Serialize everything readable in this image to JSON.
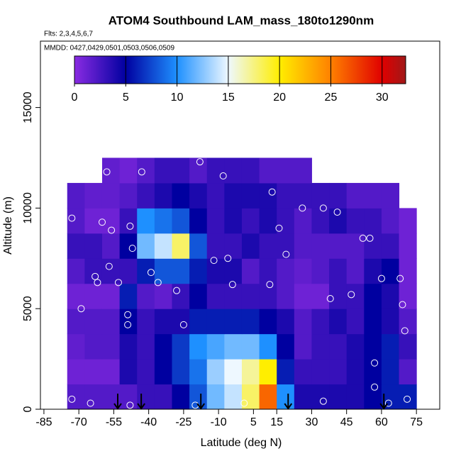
{
  "chart_data": {
    "type": "heatmap",
    "title": "ATOM4 Southbound LAM_mass_180to1290nm",
    "flights": "Flts: 2,3,4,5,6,7",
    "dates": "MMDD: 0427,0429,0501,0503,0506,0509",
    "x_label": "Latitude (deg N)",
    "y_label": "Altitude (m)",
    "xlim": [
      -86.5,
      85
    ],
    "ylim": [
      0,
      18300
    ],
    "xticks": [
      -85,
      -70,
      -55,
      -40,
      -25,
      -10,
      5,
      15,
      30,
      45,
      60,
      75
    ],
    "yticks": [
      0,
      5000,
      10000,
      15000
    ],
    "lat_edges": [
      -75,
      -67.5,
      -60,
      -52.5,
      -45,
      -37.5,
      -30,
      -22.5,
      -15,
      -7.5,
      0,
      7.5,
      15,
      22.5,
      30,
      37.5,
      45,
      52.5,
      60,
      67.5,
      75
    ],
    "alt_edges": [
      0,
      1250,
      2500,
      3750,
      5000,
      6250,
      7500,
      8750,
      10000,
      11250,
      12500
    ],
    "values": [
      [
        2,
        2,
        2,
        2,
        3,
        3,
        5,
        8,
        12,
        14,
        18,
        26,
        10,
        4,
        4,
        4,
        4,
        5,
        6,
        6
      ],
      [
        1,
        1,
        1,
        4,
        3,
        5,
        7,
        9,
        13,
        15,
        17,
        20,
        6,
        3,
        3,
        3,
        4,
        5,
        6,
        2
      ],
      [
        1.5,
        2,
        2,
        4,
        3,
        5,
        7,
        10,
        11,
        12,
        12,
        10,
        5,
        2,
        3,
        3,
        4,
        5,
        6,
        3
      ],
      [
        2,
        2,
        2,
        5,
        3,
        4,
        4,
        6,
        6,
        6,
        6,
        5,
        4,
        2,
        3,
        4,
        3,
        5,
        4,
        2
      ],
      [
        1,
        1,
        1,
        6,
        2,
        1.5,
        3,
        5,
        3,
        3,
        3,
        3,
        2,
        1,
        1,
        3,
        3,
        5,
        4,
        1
      ],
      [
        2,
        3,
        3,
        3,
        6,
        8,
        8,
        6,
        4,
        4,
        2,
        3,
        2,
        1.5,
        2,
        3,
        2,
        4,
        5,
        1
      ],
      [
        3,
        3,
        2,
        5,
        12,
        14,
        18,
        8,
        3,
        3,
        4,
        3,
        3,
        2,
        2,
        2,
        2,
        3,
        3,
        1
      ],
      [
        2,
        1,
        1,
        3,
        10,
        9,
        8,
        5,
        3,
        4,
        3,
        4,
        3,
        2,
        3,
        4,
        3,
        3,
        2,
        1
      ],
      [
        2,
        1.5,
        1.5,
        2,
        3,
        4,
        5,
        4,
        3,
        4,
        4,
        4,
        3,
        3,
        3,
        3,
        2,
        2,
        2,
        null
      ],
      [
        null,
        null,
        1.5,
        1,
        2,
        3,
        3,
        2,
        3,
        3,
        3,
        2,
        2,
        2,
        null,
        null,
        null,
        null,
        null,
        null
      ]
    ],
    "colorscale": [
      {
        "value": 0,
        "color": "#8a2be2"
      },
      {
        "value": 5,
        "color": "#0000a0"
      },
      {
        "value": 10,
        "color": "#1e90ff"
      },
      {
        "value": 15,
        "color": "#eef8ff"
      },
      {
        "value": 20,
        "color": "#ffee00"
      },
      {
        "value": 25,
        "color": "#ff8000"
      },
      {
        "value": 30,
        "color": "#e00000"
      },
      {
        "value": 32.3,
        "color": "#a01818"
      }
    ],
    "colorbar_lim": [
      0,
      32.3
    ],
    "colorbar_ticks": [
      0,
      5,
      10,
      15,
      20,
      25,
      30
    ],
    "points": {
      "color": "#ffffff",
      "x": [
        -73,
        -60,
        -56,
        -48,
        -47,
        -62,
        -63,
        -57,
        -53,
        -69,
        -49,
        -49,
        -39,
        -36,
        -28,
        -12,
        -6,
        -4,
        12,
        16,
        19,
        26,
        35,
        41,
        52,
        55,
        60,
        68,
        70,
        69,
        57,
        57,
        47,
        -43,
        -58,
        -8,
        -18,
        13,
        38,
        -25,
        -73,
        -65,
        -48,
        -20,
        1,
        35,
        63,
        71
      ],
      "y": [
        9500,
        9300,
        8900,
        9100,
        8000,
        6300,
        6600,
        7100,
        6300,
        5000,
        4700,
        4200,
        6800,
        6300,
        5900,
        7400,
        7500,
        6200,
        6200,
        9000,
        7700,
        10000,
        10000,
        9800,
        8500,
        8500,
        6500,
        6500,
        3900,
        5200,
        2300,
        1100,
        5700,
        11800,
        11800,
        11600,
        12300,
        10800,
        5500,
        4200,
        500,
        300,
        200,
        200,
        300,
        400,
        300,
        500
      ]
    },
    "arrows": {
      "color": "#000000",
      "x": [
        -53.3,
        -43.2,
        -17.6,
        19.9,
        61
      ]
    }
  }
}
